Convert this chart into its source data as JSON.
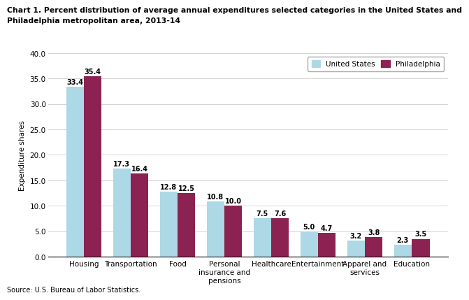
{
  "title_line1": "Chart 1. Percent distribution of average annual expenditures selected categories in the United States and",
  "title_line2": "Philadelphia metropolitan area, 2013-14",
  "ylabel": "Expenditure shares",
  "source": "Source: U.S. Bureau of Labor Statistics.",
  "categories": [
    "Housing",
    "Transportation",
    "Food",
    "Personal\ninsurance and\npensions",
    "Healthcare",
    "Entertainment",
    "Apparel and\nservices",
    "Education"
  ],
  "us_values": [
    33.4,
    17.3,
    12.8,
    10.8,
    7.5,
    5.0,
    3.2,
    2.3
  ],
  "philly_values": [
    35.4,
    16.4,
    12.5,
    10.0,
    7.6,
    4.7,
    3.8,
    3.5
  ],
  "us_color": "#ADD8E6",
  "philly_color": "#8B2252",
  "ylim": [
    0,
    40.0
  ],
  "yticks": [
    0.0,
    5.0,
    10.0,
    15.0,
    20.0,
    25.0,
    30.0,
    35.0,
    40.0
  ],
  "legend_us": "United States",
  "legend_philly": "Philadelphia",
  "bar_width": 0.38,
  "title_fontsize": 7.8,
  "label_fontsize": 7.5,
  "tick_fontsize": 7.5,
  "value_fontsize": 7.0
}
